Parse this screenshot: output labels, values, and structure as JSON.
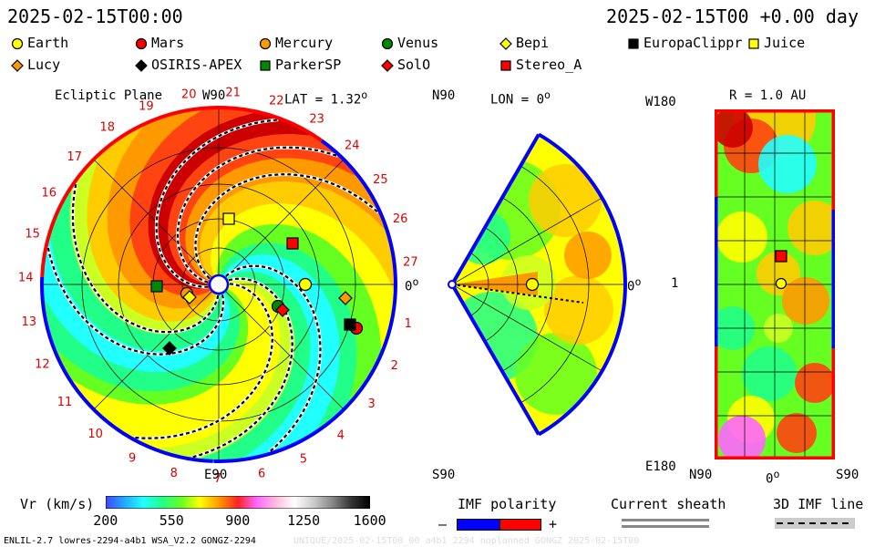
{
  "header": {
    "left_datetime": "2025-02-15T00:00",
    "right_datetime": "2025-02-15T00 +0.00 day"
  },
  "legend": [
    {
      "name": "Earth",
      "shape": "circle",
      "color": "#ffff00"
    },
    {
      "name": "Mars",
      "shape": "circle",
      "color": "#ff0000"
    },
    {
      "name": "Mercury",
      "shape": "circle",
      "color": "#ff9900"
    },
    {
      "name": "Venus",
      "shape": "circle",
      "color": "#008800"
    },
    {
      "name": "Bepi",
      "shape": "diamond",
      "color": "#ffff00"
    },
    {
      "name": "EuropaClippr",
      "shape": "square",
      "color": "#000000"
    },
    {
      "name": "Juice",
      "shape": "square",
      "color": "#ffff00"
    },
    {
      "name": "Lucy",
      "shape": "diamond",
      "color": "#ff9900"
    },
    {
      "name": "OSIRIS-APEX",
      "shape": "diamond",
      "color": "#000000"
    },
    {
      "name": "ParkerSP",
      "shape": "square",
      "color": "#008800"
    },
    {
      "name": "SolO",
      "shape": "diamond",
      "color": "#ff0000"
    },
    {
      "name": "Stereo_A",
      "shape": "square",
      "color": "#ff0000"
    }
  ],
  "ecliptic": {
    "title": "Ecliptic Plane",
    "lat_label": "LAT = 1.32",
    "top_label": "W90",
    "bottom_label": "E90",
    "right_label": "0",
    "carrington_numbers": [
      "1",
      "2",
      "3",
      "4",
      "5",
      "6",
      "7",
      "8",
      "9",
      "10",
      "11",
      "12",
      "13",
      "14",
      "15",
      "16",
      "17",
      "18",
      "19",
      "20",
      "21",
      "22",
      "23",
      "24",
      "25",
      "26",
      "27"
    ]
  },
  "meridional": {
    "north_label": "N90",
    "lon_label": "LON = 0",
    "south_label": "S90",
    "right_label": "0"
  },
  "mercator": {
    "r_label": "R = 1.0 AU",
    "top_left_label": "W180",
    "middle_label": "1",
    "bottom_left_label": "E180",
    "x_labels": [
      "N90",
      "0",
      "S90"
    ]
  },
  "colorbar": {
    "title": "Vr (km/s)",
    "ticks": [
      "200",
      "550",
      "900",
      "1250",
      "1600"
    ],
    "range": [
      200,
      1600
    ],
    "colors": [
      "#4444ff",
      "#22aaff",
      "#22ffff",
      "#22ff88",
      "#66ff22",
      "#ffff00",
      "#ff9900",
      "#ff2222",
      "#ff66ff",
      "#ffbbdd",
      "#ffffff",
      "#cccccc",
      "#888888",
      "#333333",
      "#000000"
    ]
  },
  "imf": {
    "title": "IMF polarity",
    "minus": "–",
    "plus": "+",
    "neg_color": "#0000ff",
    "pos_color": "#ff0000"
  },
  "sheath": {
    "title": "Current sheath"
  },
  "imf_line": {
    "title": "3D IMF line"
  },
  "footer": {
    "left": "ENLIL-2.7 lowres-2294-a4b1 WSA_V2.2 GONGZ-2294",
    "right": "UNIQUE/2025-02-15T00_00 a4b1 2294 noplanned GONGZ 2025-02-15T00"
  },
  "chart_data": [
    {
      "type": "heatmap",
      "title": "Ecliptic Plane",
      "quantity": "Vr (km/s)",
      "lat": 1.32,
      "bodies": [
        "Earth",
        "Mars",
        "Mercury",
        "Venus",
        "Bepi",
        "EuropaClippr",
        "Juice",
        "Lucy",
        "OSIRIS-APEX",
        "ParkerSP",
        "SolO",
        "Stereo_A"
      ]
    },
    {
      "type": "heatmap",
      "title": "LON = 0",
      "quantity": "Vr (km/s)",
      "lon": 0
    },
    {
      "type": "heatmap",
      "title": "R = 1.0 AU",
      "quantity": "Vr (km/s)",
      "r_au": 1.0
    }
  ]
}
